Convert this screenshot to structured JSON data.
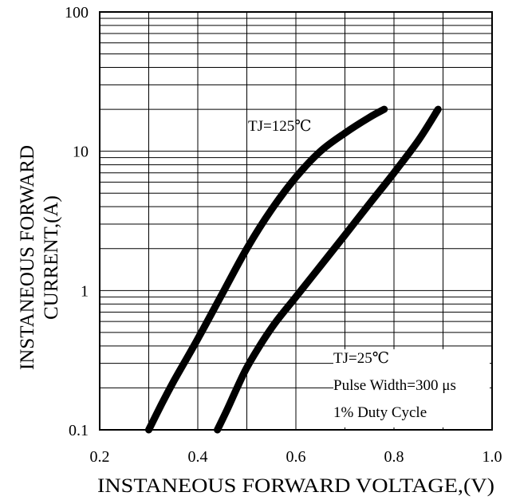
{
  "chart_data": {
    "type": "line",
    "title": "",
    "xlabel": "INSTANEOUS FORWARD VOLTAGE,(V)",
    "ylabel_lines": [
      "INSTANEOUS FORWARD",
      "CURRENT,(A)"
    ],
    "xlim": [
      0.2,
      1.0
    ],
    "ylim": [
      0.1,
      100
    ],
    "y_scale": "log",
    "grid": true,
    "x_ticks": [
      {
        "value": 0.2,
        "label": "0.2"
      },
      {
        "value": 0.4,
        "label": "0.4"
      },
      {
        "value": 0.6,
        "label": "0.6"
      },
      {
        "value": 0.8,
        "label": "0.8"
      },
      {
        "value": 1.0,
        "label": "1.0"
      }
    ],
    "x_minor_grid": [
      0.3,
      0.5,
      0.7,
      0.9
    ],
    "y_ticks": [
      {
        "value": 0.1,
        "label": "0.1"
      },
      {
        "value": 1,
        "label": "1"
      },
      {
        "value": 10,
        "label": "10"
      },
      {
        "value": 100,
        "label": "100"
      }
    ],
    "series": [
      {
        "name": "TJ=125℃",
        "color": "#000000",
        "x": [
          0.3,
          0.325,
          0.35,
          0.4,
          0.45,
          0.5,
          0.55,
          0.6,
          0.65,
          0.7,
          0.75,
          0.78
        ],
        "y": [
          0.1,
          0.15,
          0.22,
          0.45,
          0.95,
          2.0,
          3.8,
          6.5,
          10.0,
          13.5,
          17.5,
          20.0
        ]
      },
      {
        "name": "TJ=25℃",
        "color": "#000000",
        "x": [
          0.44,
          0.46,
          0.48,
          0.5,
          0.53,
          0.56,
          0.6,
          0.65,
          0.7,
          0.75,
          0.8,
          0.85,
          0.89
        ],
        "y": [
          0.1,
          0.14,
          0.2,
          0.28,
          0.42,
          0.6,
          0.9,
          1.5,
          2.5,
          4.2,
          7.0,
          12.0,
          20.0
        ]
      }
    ],
    "annotations": {
      "tj125": "TJ=125℃",
      "tj25": "TJ=25℃",
      "pulse": "Pulse Width=300 μs",
      "duty": "1% Duty Cycle"
    }
  }
}
